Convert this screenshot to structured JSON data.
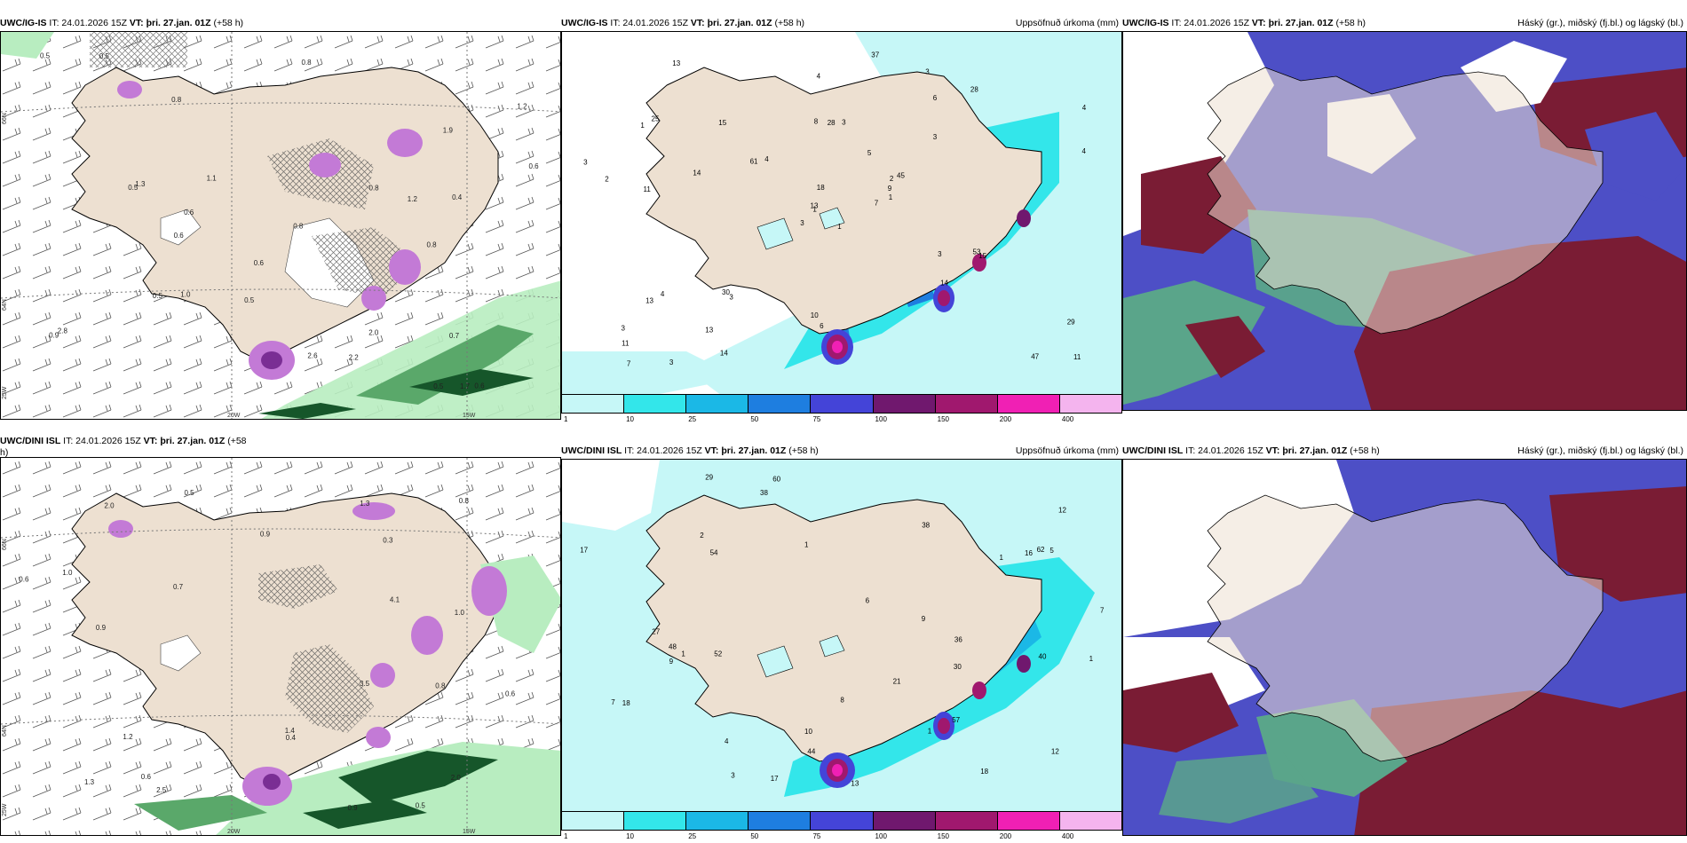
{
  "panels": {
    "p1": {
      "model": "UWC/IG-IS",
      "it": "IT: 24.01.2026 15Z",
      "vt_label": "VT:",
      "vt": "þri. 27.jan. 01Z",
      "lead": "(+58 h)",
      "right": ""
    },
    "p2": {
      "model": "UWC/IG-IS",
      "it": "IT: 24.01.2026 15Z",
      "vt_label": "VT:",
      "vt": "þri. 27.jan. 01Z",
      "lead": "(+58 h)",
      "right": "Uppsöfnuð úrkoma (mm)"
    },
    "p3": {
      "model": "UWC/IG-IS",
      "it": "IT: 24.01.2026 15Z",
      "vt_label": "VT:",
      "vt": "þri. 27.jan. 01Z",
      "lead": "(+58 h)",
      "right": "Háský (gr.), miðský (fj.bl.) og lágský (bl.)"
    },
    "p4": {
      "model": "UWC/DINI ISL",
      "it": "IT: 24.01.2026 15Z",
      "vt_label": "VT:",
      "vt": "þri. 27.jan. 01Z",
      "lead": "(+58",
      "lead2": "h)",
      "right": ""
    },
    "p5": {
      "model": "UWC/DINI ISL",
      "it": "IT: 24.01.2026 15Z",
      "vt_label": "VT:",
      "vt": "þri. 27.jan. 01Z",
      "lead": "(+58 h)",
      "right": "Uppsöfnuð úrkoma (mm)"
    },
    "p6": {
      "model": "UWC/DINI ISL",
      "it": "IT: 24.01.2026 15Z",
      "vt_label": "VT:",
      "vt": "þri. 27.jan. 01Z",
      "lead": "(+58 h)",
      "right": "Háský (gr.), miðský (fj.bl.) og lágský (bl.)"
    }
  },
  "axes": {
    "lat_top": "66N",
    "lat_mid": "64N",
    "lat_bot": "25W",
    "lon_left": "20W",
    "lon_right": "15W"
  },
  "legend": {
    "ticks": [
      "1",
      "10",
      "25",
      "50",
      "75",
      "100",
      "150",
      "200",
      "400"
    ],
    "colors": [
      "#c6f7f7",
      "#33e6ea",
      "#1bb8e6",
      "#1e7ee0",
      "#4444d8",
      "#70186e",
      "#a0186e",
      "#f020b4",
      "#f4b4ee"
    ]
  },
  "precip_labels_top": [
    "1",
    "1",
    "1",
    "3",
    "2",
    "3",
    "3",
    "3",
    "6",
    "7",
    "13",
    "11",
    "11",
    "4",
    "3",
    "3",
    "3",
    "8",
    "5",
    "4",
    "4",
    "11",
    "13",
    "28",
    "45",
    "15",
    "25",
    "4",
    "2",
    "3",
    "4",
    "13",
    "10",
    "18",
    "15",
    "28",
    "30",
    "47",
    "29",
    "53",
    "37",
    "61",
    "14",
    "14",
    "14",
    "3",
    "9",
    "7",
    "6",
    "1",
    "13"
  ],
  "precip_labels_bot": [
    "1",
    "1",
    "1",
    "1",
    "2",
    "3",
    "6",
    "12",
    "7",
    "9",
    "17",
    "29",
    "18",
    "40",
    "60",
    "48",
    "16",
    "57",
    "54",
    "52",
    "21",
    "38",
    "44",
    "17",
    "30",
    "36",
    "38",
    "18",
    "10",
    "62",
    "27",
    "12",
    "4",
    "9",
    "8",
    "5",
    "1",
    "13",
    "7"
  ],
  "snow_labels_top": [
    "0.6",
    "0.5",
    "0.5",
    "0.8",
    "0.6",
    "0.8",
    "0.5",
    "0.6",
    "1.0",
    "1.2",
    "0.4",
    "0.8",
    "0.5",
    "0.5",
    "0.6",
    "2.0",
    "0.8",
    "0.6",
    "1.2",
    "1.1",
    "1.7",
    "1.3",
    "2.2",
    "0.5",
    "0.7",
    "0.8",
    "2.6",
    "2.8",
    "1.9",
    "0.9"
  ],
  "snow_labels_bot": [
    "0.6",
    "0.5",
    "0.4",
    "1.3",
    "1.4",
    "0.7",
    "0.5",
    "0.3",
    "0.9",
    "1.0",
    "3.5",
    "0.8",
    "0.6",
    "4.1",
    "2.5",
    "2.0",
    "1.2",
    "0.6",
    "1.3",
    "0.9",
    "1.0",
    "0.8",
    "2.0",
    "0.9"
  ],
  "colors": {
    "land": "#ede0d1",
    "coast": "#000000",
    "snow_light": "#b8edc0",
    "snow_mid": "#5aa86a",
    "snow_dark": "#16562a",
    "purple": "#c37ad6",
    "cloud_high": "#5aa58a",
    "cloud_mid": "#4d4fc6",
    "cloud_low": "#7a1c34",
    "sea_precip": "#c6f7f7"
  }
}
